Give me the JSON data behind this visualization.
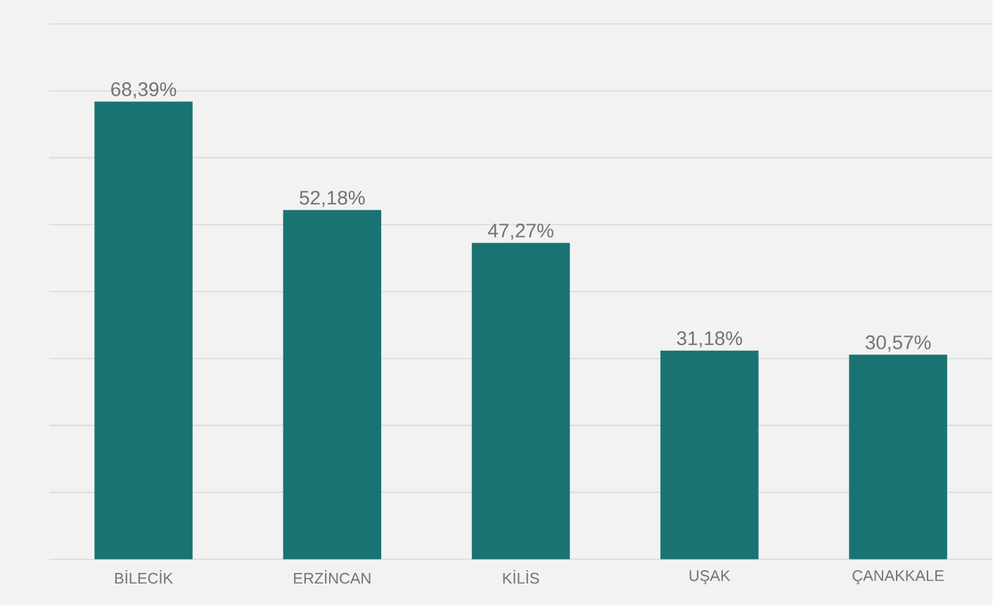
{
  "chart_data": {
    "type": "bar",
    "categories": [
      "BİLECİK",
      "ERZİNCAN",
      "KİLİS",
      "UŞAK",
      "ÇANAKKALE"
    ],
    "values": [
      68.39,
      52.18,
      47.27,
      31.18,
      30.57
    ],
    "value_labels": [
      "68,39%",
      "52,18%",
      "47,27%",
      "31,18%",
      "30,57%"
    ],
    "color": "#1a7373",
    "ylim": [
      0,
      80
    ],
    "yticks": [
      0,
      10,
      20,
      30,
      40,
      50,
      60,
      70,
      80
    ],
    "grid": "y",
    "tick_labels": "x"
  }
}
